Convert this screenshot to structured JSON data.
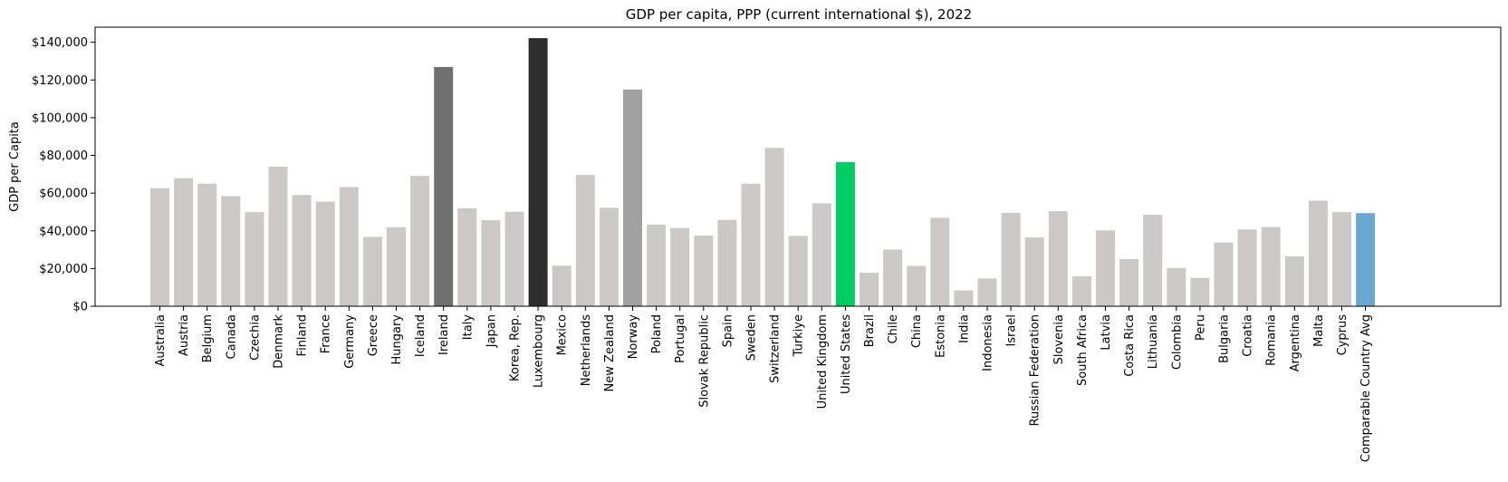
{
  "chart_data": {
    "type": "bar",
    "title": "GDP per capita, PPP (current international $), 2022",
    "xlabel": "",
    "ylabel": "GDP per Capita",
    "ylim": [
      0,
      148000
    ],
    "yticks": [
      0,
      20000,
      40000,
      60000,
      80000,
      100000,
      120000,
      140000
    ],
    "ytick_labels": [
      "$0",
      "$20,000",
      "$40,000",
      "$60,000",
      "$80,000",
      "$100,000",
      "$120,000",
      "$140,000"
    ],
    "grid": false,
    "categories": [
      "Australia",
      "Austria",
      "Belgium",
      "Canada",
      "Czechia",
      "Denmark",
      "Finland",
      "France",
      "Germany",
      "Greece",
      "Hungary",
      "Iceland",
      "Ireland",
      "Italy",
      "Japan",
      "Korea, Rep.",
      "Luxembourg",
      "Mexico",
      "Netherlands",
      "New Zealand",
      "Norway",
      "Poland",
      "Portugal",
      "Slovak Republic",
      "Spain",
      "Sweden",
      "Switzerland",
      "Turkiye",
      "United Kingdom",
      "United States",
      "Brazil",
      "Chile",
      "China",
      "Estonia",
      "India",
      "Indonesia",
      "Israel",
      "Russian Federation",
      "Slovenia",
      "South Africa",
      "Latvia",
      "Costa Rica",
      "Lithuania",
      "Colombia",
      "Peru",
      "Bulgaria",
      "Croatia",
      "Romania",
      "Argentina",
      "Malta",
      "Cyprus",
      "Comparable Country Avg"
    ],
    "values": [
      62600,
      67900,
      65000,
      58400,
      49900,
      74000,
      59000,
      55500,
      63200,
      36800,
      41900,
      69100,
      126900,
      51900,
      45600,
      50100,
      142200,
      21500,
      69600,
      52200,
      114900,
      43300,
      41500,
      37500,
      45800,
      65000,
      84000,
      37300,
      54600,
      76400,
      17800,
      30100,
      21400,
      46900,
      8400,
      14700,
      49500,
      36500,
      50400,
      15900,
      40200,
      25000,
      48500,
      20300,
      15000,
      33800,
      40700,
      42000,
      26500,
      56000,
      49900,
      49400
    ],
    "colors": {
      "default": "#cbc8c7",
      "Ireland": "#707070",
      "Luxembourg": "#2e2e2e",
      "Norway": "#a1a1a1",
      "United States": "#00cc66",
      "Comparable Country Avg": "#6aa8d0"
    }
  }
}
